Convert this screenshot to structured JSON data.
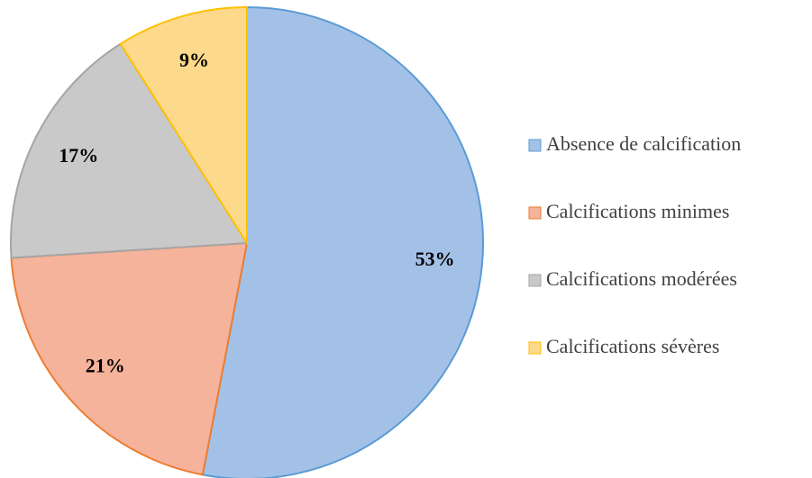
{
  "chart_data": {
    "type": "pie",
    "categories": [
      "Absence de calcification",
      "Calcifications minimes",
      "Calcifications modérées",
      "Calcifications sévères"
    ],
    "values": [
      53,
      21,
      17,
      9
    ],
    "value_labels": [
      "53%",
      "21%",
      "17%",
      "9%"
    ],
    "colors": [
      "#a3c1e7",
      "#f5b39c",
      "#c9c9c9",
      "#fdd98c"
    ],
    "edge_colors": [
      "#5b9bd5",
      "#ed7d31",
      "#a5a5a5",
      "#ffc000"
    ],
    "legend": "right"
  }
}
